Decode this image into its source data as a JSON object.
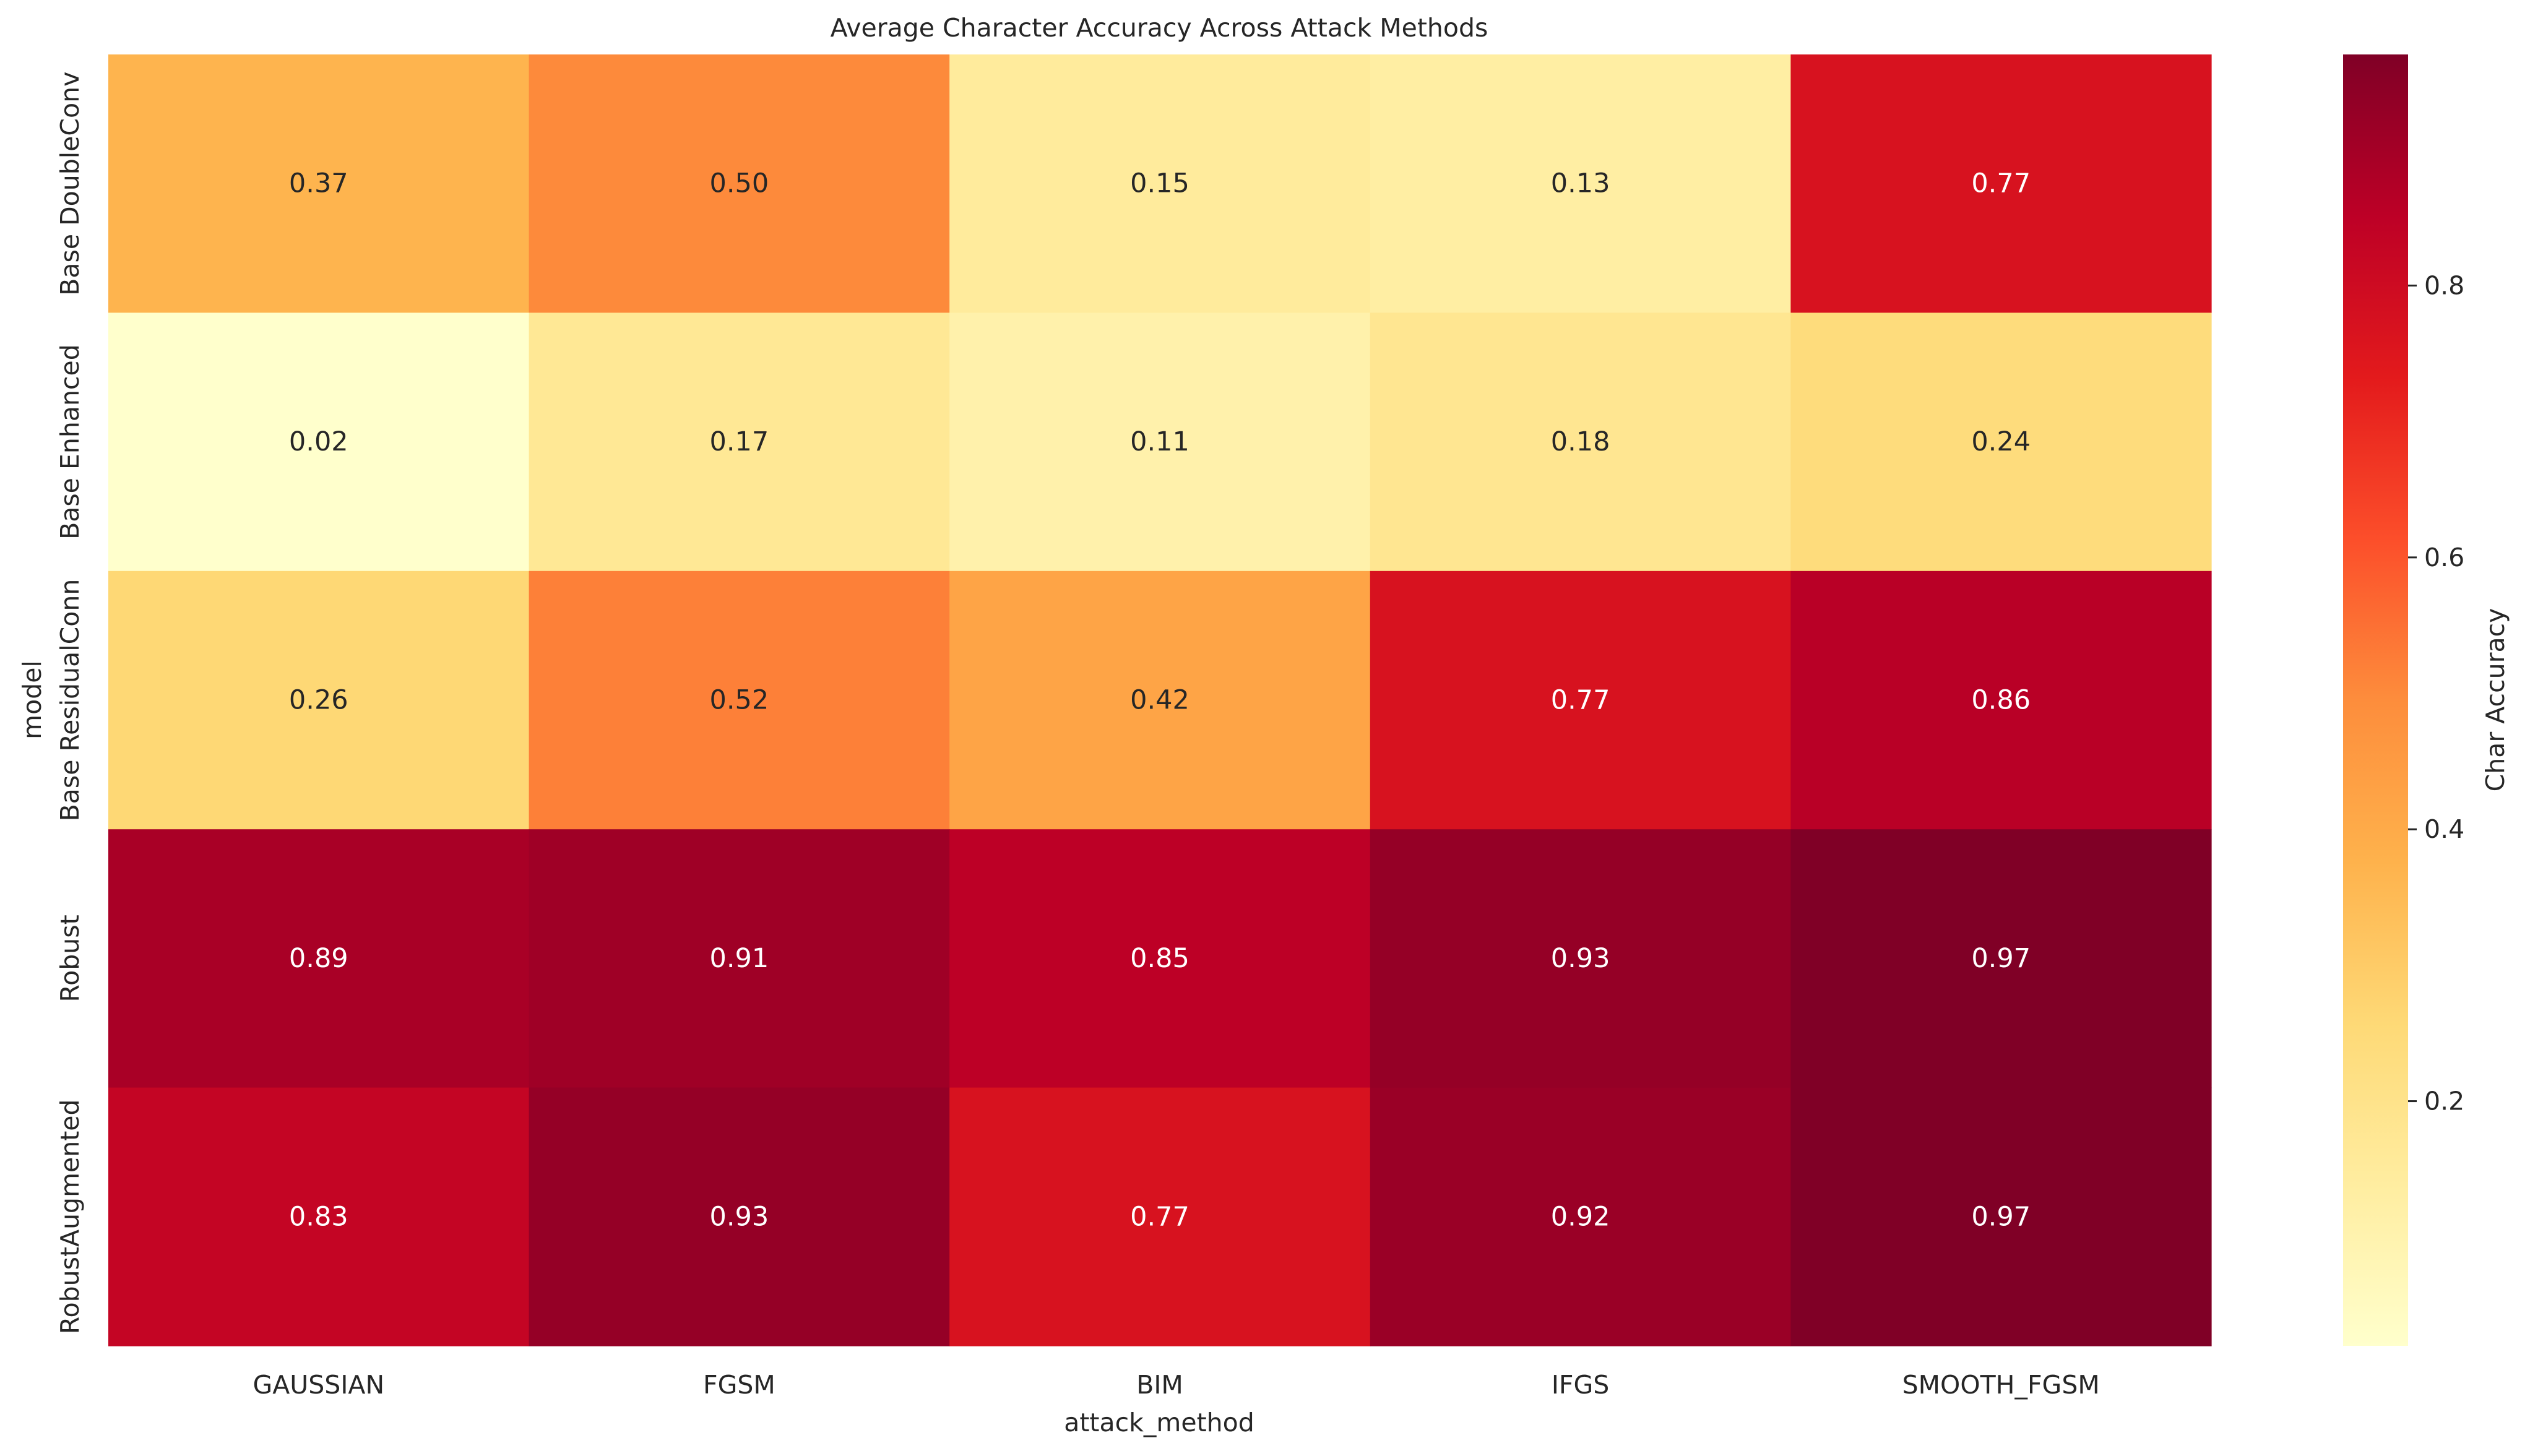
{
  "chart_data": {
    "type": "heatmap",
    "title": "Average Character Accuracy Across Attack Methods",
    "xlabel": "attack_method",
    "ylabel": "model",
    "x_categories": [
      "GAUSSIAN",
      "FGSM",
      "BIM",
      "IFGS",
      "SMOOTH_FGSM"
    ],
    "y_categories": [
      "Base DoubleConv",
      "Base Enhanced",
      "Base ResidualConn",
      "Robust",
      "RobustAugmented"
    ],
    "values": [
      [
        0.37,
        0.5,
        0.15,
        0.13,
        0.77
      ],
      [
        0.02,
        0.17,
        0.11,
        0.18,
        0.24
      ],
      [
        0.26,
        0.52,
        0.42,
        0.77,
        0.86
      ],
      [
        0.89,
        0.91,
        0.85,
        0.93,
        0.97
      ],
      [
        0.83,
        0.93,
        0.77,
        0.92,
        0.97
      ]
    ],
    "value_format": "0.00",
    "colormap": "YlOrRd",
    "color_stops": [
      "#ffffcc",
      "#ffeda0",
      "#fed976",
      "#feb24c",
      "#fd8d3c",
      "#fc4e2a",
      "#e31a1c",
      "#bd0026",
      "#800026"
    ],
    "vmin": 0.02,
    "vmax": 0.97,
    "colorbar": {
      "label": "Char Accuracy",
      "ticks": [
        0.2,
        0.4,
        0.6,
        0.8
      ],
      "tick_labels": [
        "0.2",
        "0.4",
        "0.6",
        "0.8"
      ]
    },
    "grid": false,
    "legend": "colorbar-right"
  }
}
